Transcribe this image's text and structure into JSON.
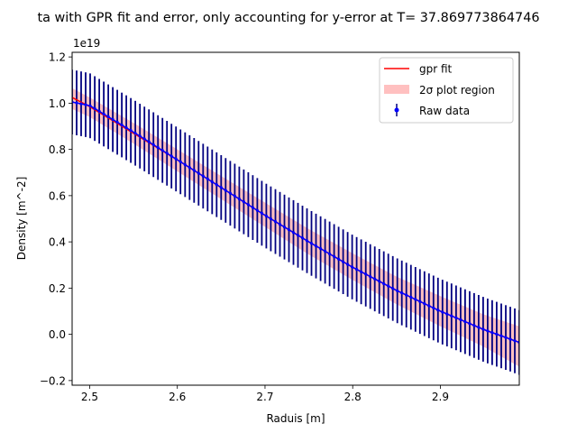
{
  "chart_data": {
    "type": "line",
    "title": "ta with GPR fit and error, only accounting for y-error at T= 37.869773864746",
    "xlabel": "Raduis [m]",
    "ylabel": "Density [m^-2]",
    "y_offset_label": "1e19",
    "y_multiplier": 1e+19,
    "xlim": [
      2.48,
      2.99
    ],
    "ylim": [
      -0.22,
      1.22
    ],
    "x_ticks": [
      2.5,
      2.6,
      2.7,
      2.8,
      2.9
    ],
    "x_tick_labels": [
      "2.5",
      "2.6",
      "2.7",
      "2.8",
      "2.9"
    ],
    "y_ticks": [
      -0.2,
      0.0,
      0.2,
      0.4,
      0.6,
      0.8,
      1.0,
      1.2
    ],
    "y_tick_labels": [
      "−0.2",
      "0.0",
      "0.2",
      "0.4",
      "0.6",
      "0.8",
      "1.0",
      "1.2"
    ],
    "grid": false,
    "legend_position": "top-right",
    "legend": [
      {
        "key": "fit",
        "label": "gpr fit"
      },
      {
        "key": "band",
        "label": "2σ plot region"
      },
      {
        "key": "data",
        "label": "Raw data"
      }
    ],
    "colors": {
      "fit": "#ff0000",
      "band": "#ffc0c0",
      "data": "#0000ff",
      "errorbar": "#000080"
    },
    "series": [
      {
        "name": "gpr fit",
        "kind": "line",
        "x": [
          2.48,
          2.5,
          2.55,
          2.6,
          2.65,
          2.7,
          2.75,
          2.8,
          2.85,
          2.9,
          2.95,
          2.99
        ],
        "y": [
          1.025,
          0.985,
          0.87,
          0.755,
          0.635,
          0.515,
          0.4,
          0.29,
          0.19,
          0.1,
          0.02,
          -0.035
        ]
      },
      {
        "name": "2σ plot region",
        "kind": "band",
        "x": [
          2.48,
          2.5,
          2.55,
          2.6,
          2.65,
          2.7,
          2.75,
          2.8,
          2.85,
          2.9,
          2.95,
          2.99
        ],
        "lower": [
          0.975,
          0.94,
          0.825,
          0.705,
          0.585,
          0.465,
          0.345,
          0.235,
          0.13,
          0.035,
          -0.055,
          -0.14
        ],
        "upper": [
          1.065,
          1.025,
          0.915,
          0.8,
          0.685,
          0.57,
          0.455,
          0.35,
          0.25,
          0.165,
          0.085,
          0.035
        ]
      },
      {
        "name": "Raw data",
        "kind": "errorbar",
        "x_start": 2.48,
        "x_end": 2.99,
        "n_points": 100,
        "y_anchor_x": [
          2.48,
          2.5,
          2.55,
          2.6,
          2.65,
          2.7,
          2.75,
          2.8,
          2.85,
          2.9,
          2.95,
          2.99
        ],
        "y_anchor": [
          1.005,
          0.99,
          0.875,
          0.755,
          0.635,
          0.515,
          0.4,
          0.29,
          0.19,
          0.1,
          0.02,
          -0.035
        ],
        "yerr": 0.14
      }
    ]
  }
}
